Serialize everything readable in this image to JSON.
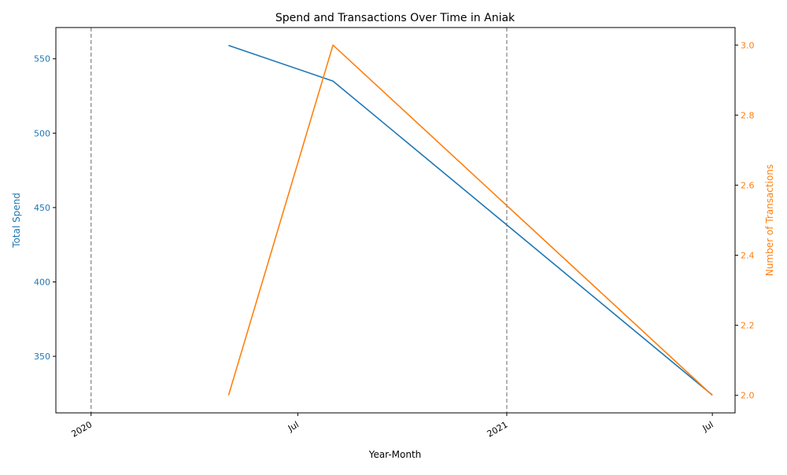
{
  "chart_data": {
    "type": "line",
    "title": "Spend and Transactions Over Time in Aniak",
    "xlabel": "Year-Month",
    "x_ticks": [
      {
        "date": "2020-01-01",
        "label": "2020"
      },
      {
        "date": "2020-07-01",
        "label": "Jul"
      },
      {
        "date": "2021-01-01",
        "label": "2021"
      },
      {
        "date": "2021-07-01",
        "label": "Jul"
      }
    ],
    "xlim": [
      "2019-12-01",
      "2021-07-21"
    ],
    "vlines": [
      "2020-01-01",
      "2021-01-01"
    ],
    "left_axis": {
      "label": "Total Spend",
      "color": "#1f77b4",
      "ylim": [
        312,
        571
      ],
      "ticks": [
        350,
        400,
        450,
        500,
        550
      ]
    },
    "right_axis": {
      "label": "Number of Transactions",
      "color": "#ff7f0e",
      "ylim": [
        1.95,
        3.05
      ],
      "ticks": [
        2.0,
        2.2,
        2.4,
        2.6,
        2.8,
        3.0
      ],
      "tick_labels": [
        "2.0",
        "2.2",
        "2.4",
        "2.6",
        "2.8",
        "3.0"
      ]
    },
    "series": [
      {
        "axis": "left",
        "color": "#1f77b4",
        "x": [
          "2020-05-01",
          "2020-08-01",
          "2021-07-01"
        ],
        "values": [
          559,
          535,
          324
        ]
      },
      {
        "axis": "right",
        "color": "#ff7f0e",
        "x": [
          "2020-05-01",
          "2020-08-01",
          "2021-07-01"
        ],
        "values": [
          2,
          3,
          2
        ]
      }
    ]
  }
}
